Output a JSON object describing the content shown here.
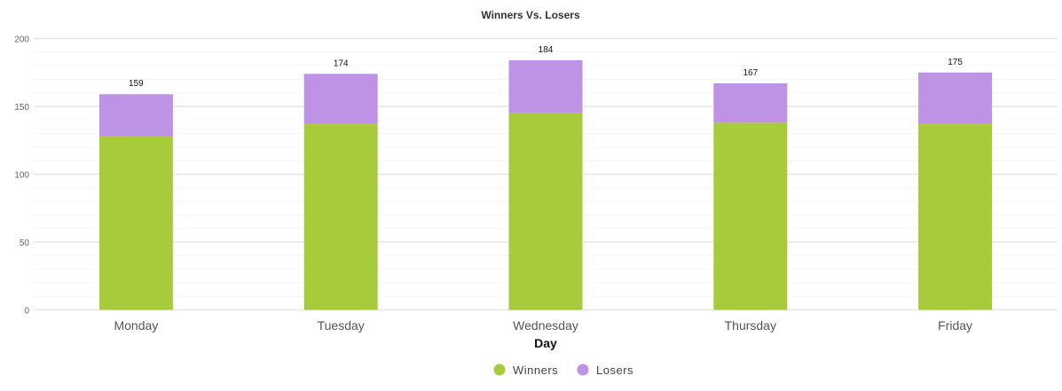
{
  "chart_data": {
    "type": "bar",
    "stacked": true,
    "title": "Winners Vs. Losers",
    "xlabel": "Day",
    "ylabel": "",
    "ylim": [
      0,
      200
    ],
    "yticks": [
      0,
      50,
      100,
      150,
      200
    ],
    "grid": true,
    "legend_position": "bottom",
    "categories": [
      "Monday",
      "Tuesday",
      "Wednesday",
      "Thursday",
      "Friday"
    ],
    "series": [
      {
        "name": "Winners",
        "color": "#a8cb3c",
        "values": [
          128,
          137,
          145,
          138,
          137
        ]
      },
      {
        "name": "Losers",
        "color": "#be92e4",
        "values": [
          31,
          37,
          39,
          29,
          38
        ]
      }
    ],
    "totals": [
      159,
      174,
      184,
      167,
      175
    ]
  }
}
